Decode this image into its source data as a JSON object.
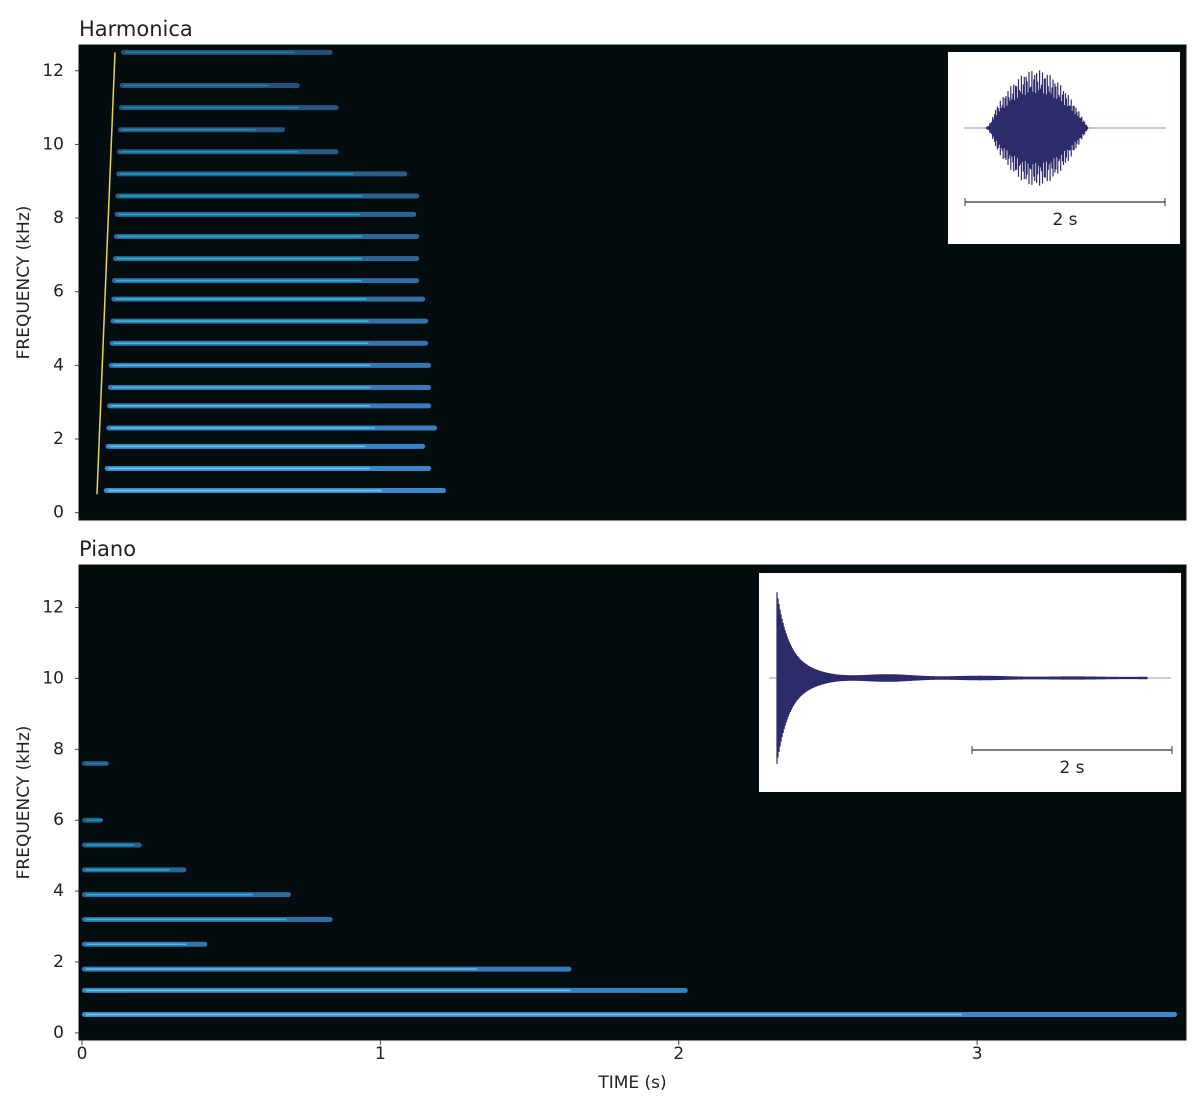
{
  "chart_data": [
    {
      "type": "spectrogram",
      "title": "Harmonica",
      "ylabel": "FREQUENCY (kHz)",
      "ylim": [
        -0.2,
        12.7
      ],
      "yticks": [
        0,
        2,
        4,
        6,
        8,
        10,
        12
      ],
      "xlim": [
        -0.01,
        3.7
      ],
      "color": "#3f8fd6",
      "background": "#050c0f",
      "values": [
        0.6,
        1.2,
        1.8,
        2.3,
        2.9,
        3.4,
        4.0,
        4.6,
        5.2,
        5.8,
        6.3,
        6.9,
        7.5,
        8.1,
        8.6,
        9.2,
        9.8,
        10.4,
        11.0,
        11.6,
        12.5
      ],
      "x": [
        1.22,
        1.17,
        1.15,
        1.19,
        1.17,
        1.17,
        1.17,
        1.16,
        1.16,
        1.15,
        1.13,
        1.13,
        1.13,
        1.12,
        1.13,
        1.09,
        0.86,
        0.68,
        0.86,
        0.73,
        0.84
      ],
      "inset_label": "2 s"
    },
    {
      "type": "spectrogram",
      "title": "Piano",
      "ylabel": "FREQUENCY (kHz)",
      "xlabel": "TIME (s)",
      "ylim": [
        -0.2,
        13.2
      ],
      "yticks": [
        0,
        2,
        4,
        6,
        8,
        10,
        12
      ],
      "xlim": [
        -0.01,
        3.7
      ],
      "xticks": [
        0,
        1,
        2,
        3
      ],
      "color": "#3f8fd6",
      "background": "#050c0f",
      "values": [
        0.52,
        1.2,
        1.8,
        2.5,
        3.2,
        3.9,
        4.6,
        5.3,
        6.0,
        7.6
      ],
      "x": [
        3.67,
        2.03,
        1.64,
        0.42,
        0.84,
        0.7,
        0.35,
        0.2,
        0.07,
        0.09
      ],
      "inset_label": "2 s"
    }
  ]
}
